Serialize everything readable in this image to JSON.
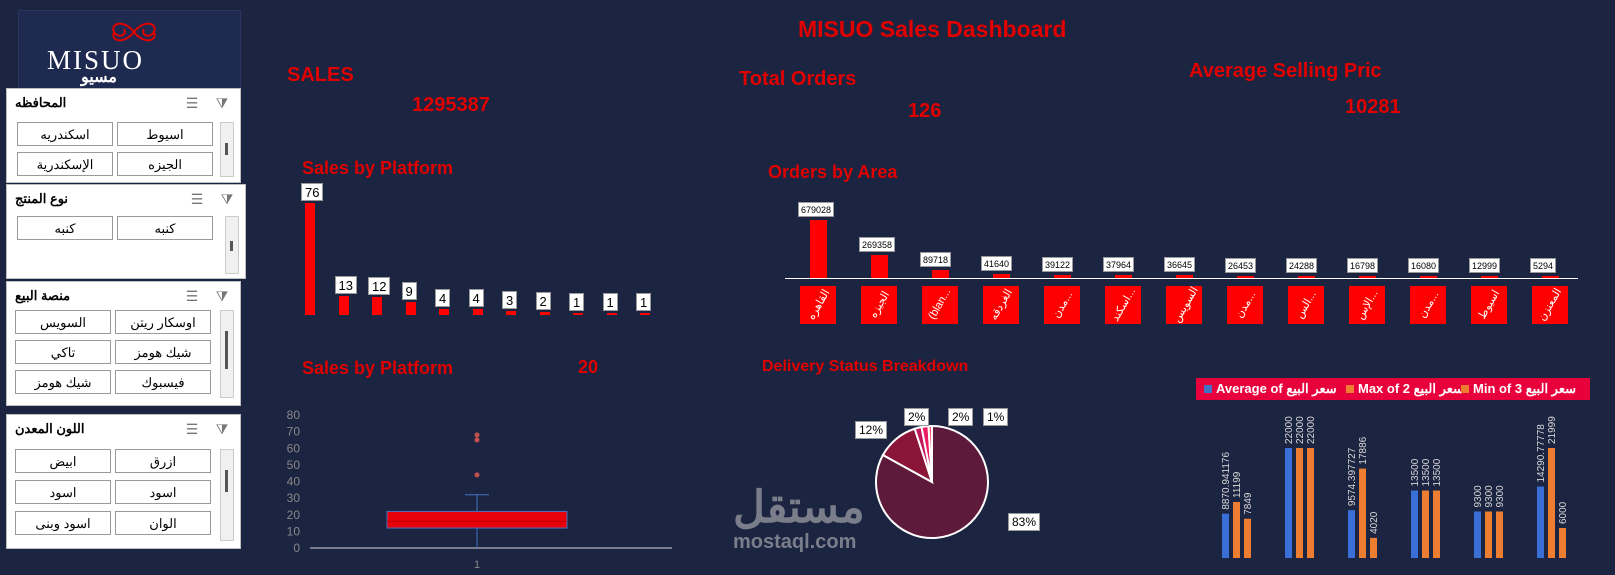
{
  "title": "MISUO Sales Dashboard",
  "logo": {
    "brand": "MISUO",
    "brand_ar": "مسيو"
  },
  "kpis": {
    "sales_label": "SALES",
    "sales_value": "1295387",
    "orders_label": "Total Orders",
    "orders_value": "126",
    "asp_label": "Average Selling Pric",
    "asp_value": "10281"
  },
  "slicers": [
    {
      "title": "المحافظه",
      "items": [
        "اسيوط",
        "اسكندريه",
        "الجيزه",
        "الإسكندرية"
      ]
    },
    {
      "title": "نوع المنتج",
      "items": [
        "كنبه",
        "كنبه"
      ]
    },
    {
      "title": "منصة البيع",
      "items": [
        "اوسكار ريتن",
        "السويس",
        "شيك هومز",
        "تاكي",
        "فيسبوك",
        "شيك هومز"
      ]
    },
    {
      "title": "اللون المعدن",
      "items": [
        "ازرق",
        "ابيض",
        "اسود",
        "اسود",
        "الوان",
        "اسود وبنى"
      ]
    }
  ],
  "icons": {
    "multi_select": "multi-select-icon",
    "clear_filter": "clear-filter-icon"
  },
  "sections": {
    "platform_title": "Sales by Platform",
    "area_title": "Orders by Area",
    "platform2_title": "Sales by Platform",
    "platform2_value": "20",
    "delivery_title": "Delivery Status Breakdown"
  },
  "chart_data": [
    {
      "type": "bar",
      "title": "Sales by Platform",
      "values": [
        76,
        13,
        12,
        9,
        4,
        4,
        3,
        2,
        1,
        1,
        1
      ]
    },
    {
      "type": "bar",
      "title": "Orders by Area",
      "categories": [
        "القاهره",
        "الجيزه",
        "(blan...",
        "الغردقه",
        "مدن...",
        "اسكند...",
        "السويس",
        "مدن...",
        "الس...",
        "الإس...",
        "مدن...",
        "اسيوط",
        "المعنزن"
      ],
      "values": [
        679028,
        269358,
        89718,
        41640,
        39122,
        37964,
        36645,
        26453,
        24288,
        16798,
        16080,
        12999,
        5294
      ]
    },
    {
      "type": "box",
      "title": "Sales by Platform",
      "x_tick": "1",
      "y_ticks": [
        0,
        10,
        20,
        30,
        40,
        50,
        60,
        70,
        80
      ],
      "ylim": [
        0,
        80
      ],
      "whisker_low": 0,
      "q1": 12,
      "median": 16,
      "q3": 22,
      "whisker_high": 32,
      "outliers": [
        44,
        65,
        68
      ],
      "mean": 20
    },
    {
      "type": "pie",
      "title": "Delivery Status Breakdown",
      "values": [
        83,
        12,
        2,
        2,
        1
      ],
      "labels": [
        "83%",
        "12%",
        "2%",
        "2%",
        "1%"
      ],
      "colors": [
        "#5e1a3a",
        "#8b1538",
        "#c2185b",
        "#e91e63",
        "#ff4d6d"
      ]
    },
    {
      "type": "bar",
      "title": "",
      "series": [
        {
          "name": "Average of سعر البيع",
          "values": [
            8870.941176,
            22000,
            9574.397727,
            13500,
            9300,
            14290.77778
          ],
          "labels": [
            "8870.941176",
            "22000",
            "9574.397727",
            "13500",
            "9300",
            "14290.77778"
          ]
        },
        {
          "name": "Max of سعر البيع 2",
          "values": [
            11199,
            22000,
            17886,
            13500,
            9300,
            21999
          ],
          "labels": [
            "11199",
            "22000",
            "17886",
            "13500",
            "9300",
            "21999"
          ]
        },
        {
          "name": "Min of سعر البيع 3",
          "values": [
            7849,
            22000,
            4020,
            13500,
            9300,
            6000
          ],
          "labels": [
            "7849",
            "22000",
            "4020",
            "13500",
            "9300",
            "6000"
          ]
        }
      ],
      "colors": [
        "#3a6fd8",
        "#ed7d31",
        "#ed7d31"
      ]
    }
  ],
  "legend": [
    {
      "label": "Average of سعر البيع",
      "color": "#4472c4"
    },
    {
      "label": "Max of 2 سعر البيع",
      "color": "#ed7d31"
    },
    {
      "label": "Min of 3 سعر البيع",
      "color": "#ed7d31"
    }
  ],
  "watermark": {
    "ar": "مستقل",
    "en": "mostaql.com"
  }
}
